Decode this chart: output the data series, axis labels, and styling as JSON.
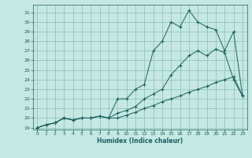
{
  "xlabel": "Humidex (Indice chaleur)",
  "xlim": [
    -0.5,
    23.5
  ],
  "ylim": [
    18.8,
    31.8
  ],
  "xticks": [
    0,
    1,
    2,
    3,
    4,
    5,
    6,
    7,
    8,
    9,
    10,
    11,
    12,
    13,
    14,
    15,
    16,
    17,
    18,
    19,
    20,
    21,
    22,
    23
  ],
  "yticks": [
    19,
    20,
    21,
    22,
    23,
    24,
    25,
    26,
    27,
    28,
    29,
    30,
    31
  ],
  "bg_color": "#c5e8e2",
  "grid_color": "#8bbcb8",
  "line_color": "#1a6060",
  "line1_x": [
    0,
    1,
    2,
    3,
    4,
    5,
    6,
    7,
    8,
    9,
    10,
    11,
    12,
    13,
    14,
    15,
    16,
    17,
    18,
    19,
    20,
    21,
    22,
    23
  ],
  "line1_y": [
    19.0,
    19.3,
    19.5,
    20.0,
    19.8,
    20.0,
    20.0,
    20.2,
    20.0,
    20.0,
    20.3,
    20.6,
    21.0,
    21.3,
    21.7,
    22.0,
    22.3,
    22.7,
    23.0,
    23.3,
    23.7,
    24.0,
    24.3,
    22.3
  ],
  "line2_x": [
    0,
    1,
    2,
    3,
    4,
    5,
    6,
    7,
    8,
    9,
    10,
    11,
    12,
    13,
    14,
    15,
    16,
    17,
    18,
    19,
    20,
    21,
    22,
    23
  ],
  "line2_y": [
    19.0,
    19.3,
    19.5,
    20.0,
    19.8,
    20.0,
    20.0,
    20.2,
    20.0,
    22.0,
    22.0,
    23.0,
    23.5,
    27.0,
    28.0,
    30.0,
    29.5,
    31.2,
    30.0,
    29.5,
    29.2,
    27.0,
    29.0,
    22.3
  ],
  "line3_x": [
    0,
    1,
    2,
    3,
    4,
    5,
    6,
    7,
    8,
    9,
    10,
    11,
    12,
    13,
    14,
    15,
    16,
    17,
    18,
    19,
    20,
    21,
    22,
    23
  ],
  "line3_y": [
    19.0,
    19.3,
    19.5,
    20.0,
    19.8,
    20.0,
    20.0,
    20.2,
    20.0,
    20.5,
    20.8,
    21.2,
    22.0,
    22.5,
    23.0,
    24.5,
    25.5,
    26.5,
    27.0,
    26.5,
    27.2,
    26.8,
    24.0,
    22.3
  ]
}
